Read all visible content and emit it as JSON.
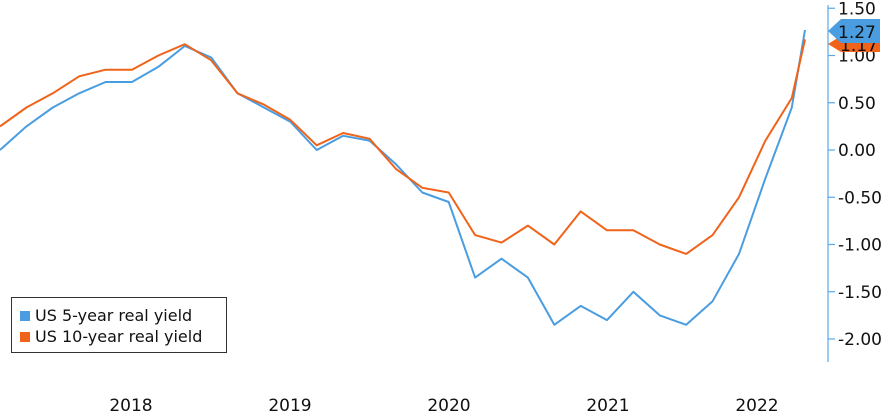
{
  "chart_data": {
    "type": "line",
    "title": "",
    "xlabel": "",
    "ylabel": "",
    "x_ticks": [
      "2018",
      "2019",
      "2020",
      "2021",
      "2022"
    ],
    "y_ticks": [
      "1.50",
      "1.00",
      "0.50",
      "0.00",
      "-0.50",
      "-1.00",
      "-1.50",
      "-2.00"
    ],
    "ylim": [
      -2.2,
      1.6
    ],
    "xlim": [
      "2017-03",
      "2022-04"
    ],
    "legend_position": "bottom-left",
    "grid": false,
    "series": [
      {
        "name": "US 5-year real yield",
        "color": "#4a9de0",
        "last_value": "1.27",
        "x": [
          "2017-03",
          "2017-05",
          "2017-07",
          "2017-09",
          "2017-11",
          "2018-01",
          "2018-03",
          "2018-05",
          "2018-07",
          "2018-09",
          "2018-11",
          "2019-01",
          "2019-03",
          "2019-05",
          "2019-07",
          "2019-09",
          "2019-11",
          "2020-01",
          "2020-03",
          "2020-05",
          "2020-07",
          "2020-09",
          "2020-11",
          "2021-01",
          "2021-03",
          "2021-05",
          "2021-07",
          "2021-09",
          "2021-11",
          "2022-01",
          "2022-03",
          "2022-04"
        ],
        "values": [
          0.0,
          0.25,
          0.45,
          0.6,
          0.72,
          0.72,
          0.88,
          1.1,
          0.98,
          0.6,
          0.45,
          0.3,
          0.0,
          0.15,
          0.1,
          -0.15,
          -0.45,
          -0.55,
          -1.35,
          -1.15,
          -1.35,
          -1.85,
          -1.65,
          -1.8,
          -1.5,
          -1.75,
          -1.85,
          -1.6,
          -1.1,
          -0.3,
          0.45,
          1.27
        ]
      },
      {
        "name": "US 10-year real yield",
        "color": "#f0631a",
        "last_value": "1.17",
        "x": [
          "2017-03",
          "2017-05",
          "2017-07",
          "2017-09",
          "2017-11",
          "2018-01",
          "2018-03",
          "2018-05",
          "2018-07",
          "2018-09",
          "2018-11",
          "2019-01",
          "2019-03",
          "2019-05",
          "2019-07",
          "2019-09",
          "2019-11",
          "2020-01",
          "2020-03",
          "2020-05",
          "2020-07",
          "2020-09",
          "2020-11",
          "2021-01",
          "2021-03",
          "2021-05",
          "2021-07",
          "2021-09",
          "2021-11",
          "2022-01",
          "2022-03",
          "2022-04"
        ],
        "values": [
          0.25,
          0.45,
          0.6,
          0.78,
          0.85,
          0.85,
          1.0,
          1.12,
          0.95,
          0.6,
          0.48,
          0.32,
          0.05,
          0.18,
          0.12,
          -0.2,
          -0.4,
          -0.45,
          -0.9,
          -0.98,
          -0.8,
          -1.0,
          -0.65,
          -0.85,
          -0.85,
          -1.0,
          -1.1,
          -0.9,
          -0.5,
          0.1,
          0.55,
          1.17
        ]
      }
    ]
  }
}
